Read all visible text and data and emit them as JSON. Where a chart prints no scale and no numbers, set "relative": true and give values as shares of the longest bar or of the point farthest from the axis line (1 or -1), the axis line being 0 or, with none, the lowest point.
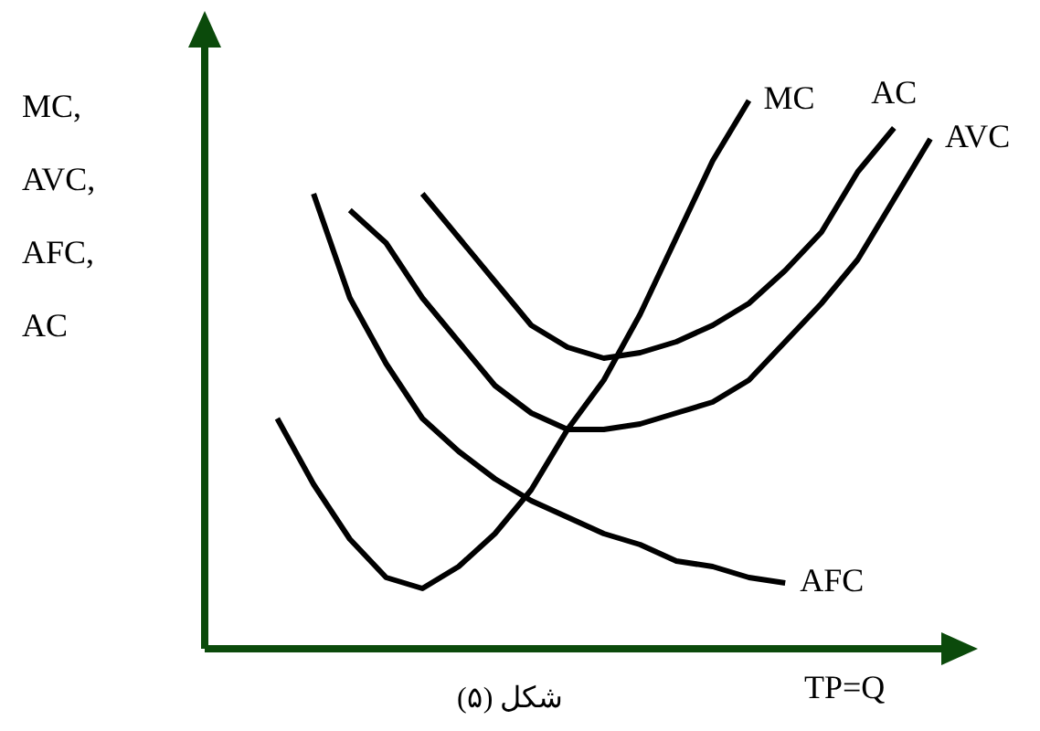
{
  "chart_data": {
    "type": "line",
    "relative": true,
    "ylabel": "MC, AVC, AFC, AC",
    "xlabel": "TP=Q",
    "annotations": [
      "شکل (۵)"
    ],
    "marker": "none",
    "line_style": "solid",
    "categories": [
      null,
      null,
      null,
      null,
      null,
      null,
      null,
      null,
      null,
      null,
      null,
      null,
      null,
      null,
      null,
      null,
      null,
      null,
      null,
      null,
      null
    ],
    "series": [
      {
        "name": "MC",
        "color": "#000000",
        "values": [
          null,
          null,
          0.42,
          0.3,
          0.2,
          0.13,
          0.11,
          0.15,
          0.21,
          0.29,
          0.4,
          0.49,
          0.61,
          0.75,
          0.89,
          1.0,
          null,
          null,
          null,
          null,
          null
        ]
      },
      {
        "name": "AC",
        "color": "#000000",
        "values": [
          null,
          null,
          null,
          null,
          null,
          null,
          0.83,
          0.75,
          0.67,
          0.59,
          0.55,
          0.53,
          0.54,
          0.56,
          0.59,
          0.63,
          0.69,
          0.76,
          0.87,
          0.95,
          null
        ]
      },
      {
        "name": "AVC",
        "color": "#000000",
        "values": [
          null,
          null,
          null,
          null,
          0.8,
          0.74,
          0.64,
          0.56,
          0.48,
          0.43,
          0.4,
          0.4,
          0.41,
          0.43,
          0.45,
          0.49,
          0.56,
          0.63,
          0.71,
          0.82,
          0.93
        ]
      },
      {
        "name": "AFC",
        "color": "#000000",
        "values": [
          null,
          null,
          null,
          0.83,
          0.64,
          0.52,
          0.42,
          0.36,
          0.31,
          0.27,
          0.24,
          0.21,
          0.19,
          0.16,
          0.15,
          0.13,
          0.12,
          null,
          null,
          null,
          null
        ]
      }
    ]
  }
}
